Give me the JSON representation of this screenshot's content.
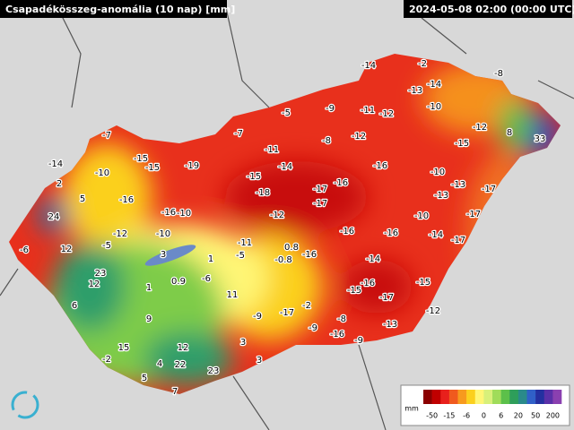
{
  "header": {
    "title": "Csapadékösszeg-anomália (10 nap) [mm]",
    "timestamp": "2024-05-08 02:00 (00:00 UTC)"
  },
  "labels": [
    -14,
    -2,
    -8,
    -13,
    -14,
    -10,
    -11,
    -12,
    -9,
    -5,
    -12,
    8,
    33,
    -7,
    -7,
    -8,
    -12,
    -15,
    -11,
    -15,
    -15,
    -19,
    -14,
    -10,
    -14,
    -16,
    -15,
    -10,
    -13,
    -17,
    2,
    5,
    -16,
    -18,
    -17,
    -16,
    -13,
    -17,
    24,
    -16,
    -10,
    -12,
    -10,
    -17,
    -6,
    12,
    -12,
    -10,
    -16,
    -16,
    -14,
    -17,
    -5,
    -11,
    0.8,
    3,
    1,
    -5,
    -0.8,
    -16,
    -14,
    23,
    0.9,
    -6,
    -16,
    12,
    1,
    -15,
    -15,
    -17,
    11,
    6,
    -2,
    -9,
    -17,
    -8,
    -12,
    9,
    -9,
    -16,
    -13,
    -9,
    3,
    15,
    12,
    -2,
    3,
    4,
    22,
    23,
    5,
    7
  ],
  "legend": {
    "unit": "mm",
    "ticks": [
      -50,
      -15,
      -6,
      0,
      6,
      20,
      50,
      200
    ],
    "colors": [
      "#8b0000",
      "#c00000",
      "#e8201c",
      "#f05a1e",
      "#f79a1e",
      "#fbd01e",
      "#fff676",
      "#d8f07a",
      "#a0dc5a",
      "#5cc04a",
      "#2e9e5a",
      "#2a8a8a",
      "#3060c8",
      "#2430a0",
      "#5a30a8",
      "#8a40b0"
    ]
  }
}
